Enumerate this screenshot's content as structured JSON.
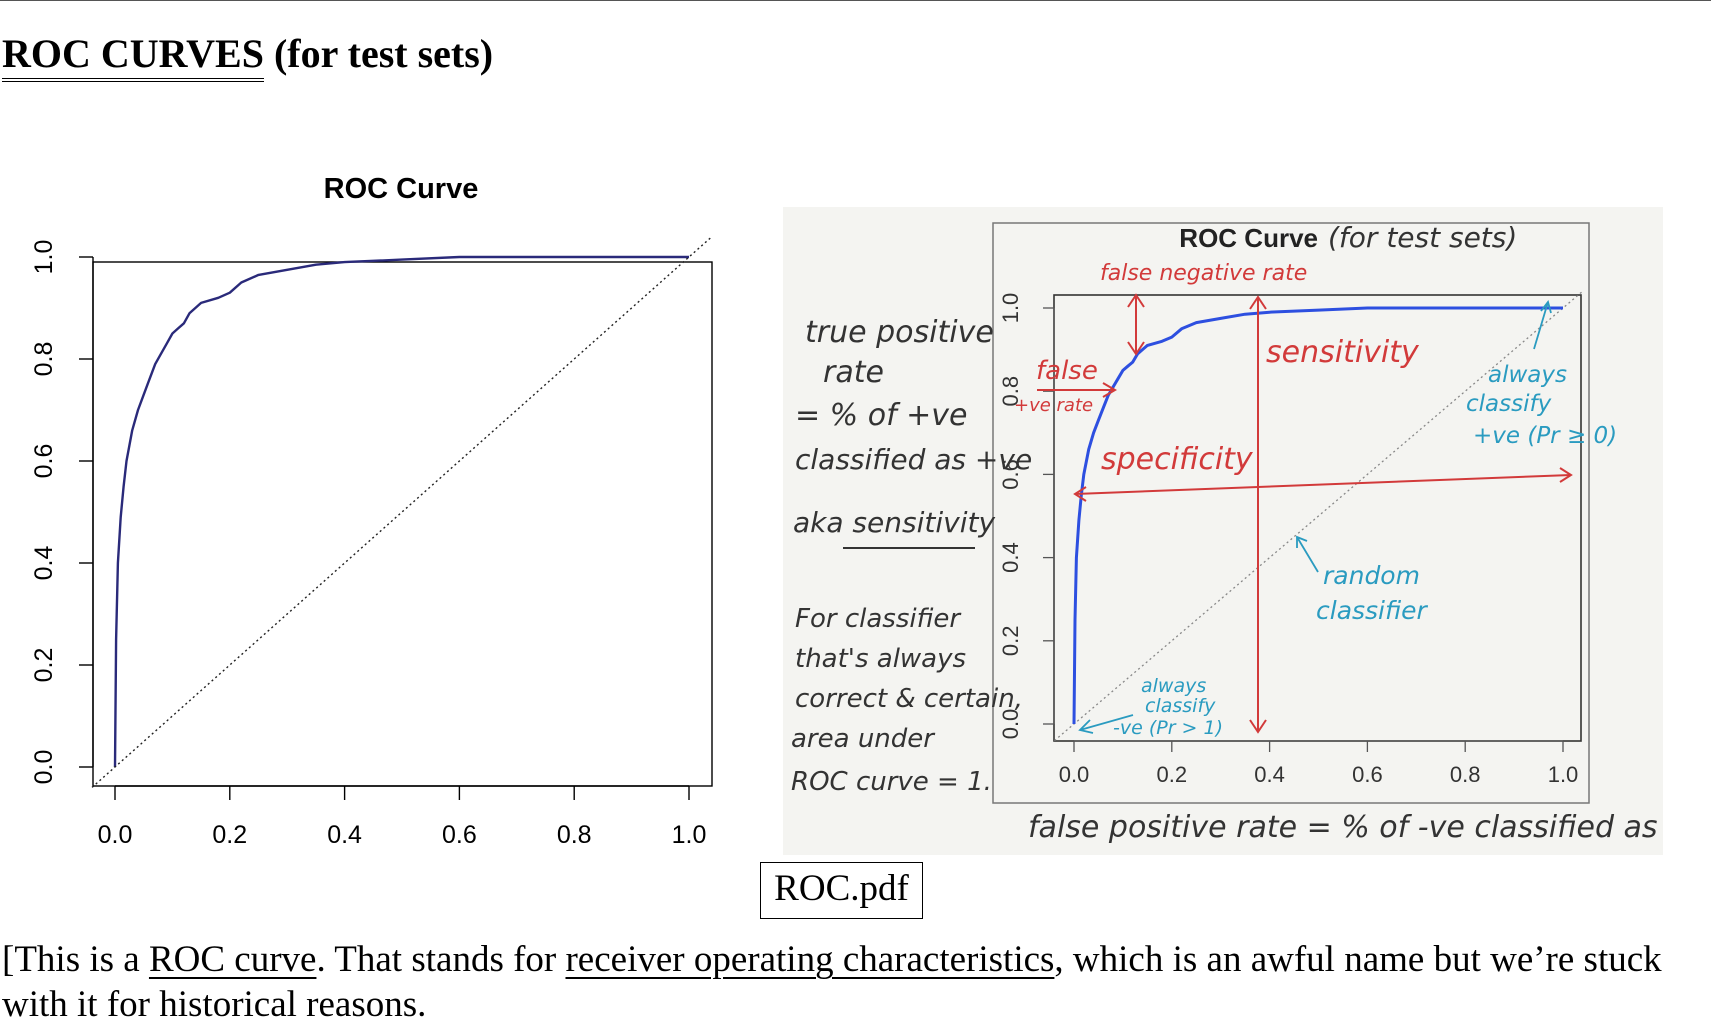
{
  "heading": {
    "underlined": "ROC CURVES",
    "rest": " (for test sets)"
  },
  "chart_data": {
    "type": "line",
    "title": "ROC Curve",
    "xlabel": "",
    "ylabel": "",
    "xlim": [
      0,
      1
    ],
    "ylim": [
      0,
      1
    ],
    "x_ticks": [
      "0.0",
      "0.2",
      "0.4",
      "0.6",
      "0.8",
      "1.0"
    ],
    "y_ticks": [
      "0.0",
      "0.2",
      "0.4",
      "0.6",
      "0.8",
      "1.0"
    ],
    "grid": false,
    "colors": {
      "curve": "#2a2a7a",
      "diagonal": "#222222"
    },
    "series": [
      {
        "style": "solid",
        "x": [
          0,
          0.002,
          0.005,
          0.01,
          0.015,
          0.02,
          0.03,
          0.04,
          0.05,
          0.06,
          0.07,
          0.08,
          0.09,
          0.1,
          0.11,
          0.12,
          0.13,
          0.15,
          0.18,
          0.2,
          0.22,
          0.25,
          0.3,
          0.35,
          0.4,
          0.5,
          0.6,
          0.8,
          1.0
        ],
        "y": [
          0,
          0.25,
          0.4,
          0.49,
          0.55,
          0.6,
          0.66,
          0.7,
          0.73,
          0.76,
          0.79,
          0.81,
          0.83,
          0.85,
          0.86,
          0.87,
          0.89,
          0.91,
          0.92,
          0.93,
          0.95,
          0.965,
          0.975,
          0.985,
          0.99,
          0.995,
          1.0,
          1.0,
          1.0
        ]
      },
      {
        "style": "dotted",
        "x": [
          0,
          1
        ],
        "y": [
          0,
          1
        ]
      }
    ]
  },
  "photo": {
    "bg": "#f4f4f1",
    "title": "ROC Curve",
    "title_note": "(for test sets)",
    "x_ticks": [
      "0.0",
      "0.2",
      "0.4",
      "0.6",
      "0.8",
      "1.0"
    ],
    "y_ticks": [
      "0.0",
      "0.2",
      "0.4",
      "0.6",
      "0.8",
      "1.0"
    ],
    "colors": {
      "curve": "#2d4fe0",
      "red": "#d23a3a",
      "teal": "#2a9bc0",
      "ink": "#333333"
    },
    "xlabel": "false positive rate = % of -ve classified as +ve",
    "left_notes": [
      "true positive",
      "rate",
      "= % of +ve",
      "classified as +ve",
      "aka sensitivity"
    ],
    "left_notes2": [
      "For classifier",
      "that's always",
      "correct & certain,",
      "area under",
      "ROC curve = 1."
    ],
    "red_notes": {
      "fnr": "false negative rate",
      "fpr_1": "false",
      "fpr_2": "+ve rate",
      "sensitivity": "sensitivity",
      "specificity": "specificity"
    },
    "teal_notes": {
      "always_pos": [
        "always",
        "classify",
        "+ve (Pr ≥ 0)"
      ],
      "random": [
        "random",
        "classifier"
      ],
      "always_neg": [
        "always",
        "classify",
        "-ve (Pr > 1)"
      ]
    }
  },
  "caption": "ROC.pdf",
  "paragraph": {
    "p1": "[This is a ",
    "link1": "ROC curve",
    "p2": ". That stands for ",
    "link2": "receiver operating characteristics",
    "p3": ", which is an awful name but we’re stuck with it for historical reasons."
  }
}
